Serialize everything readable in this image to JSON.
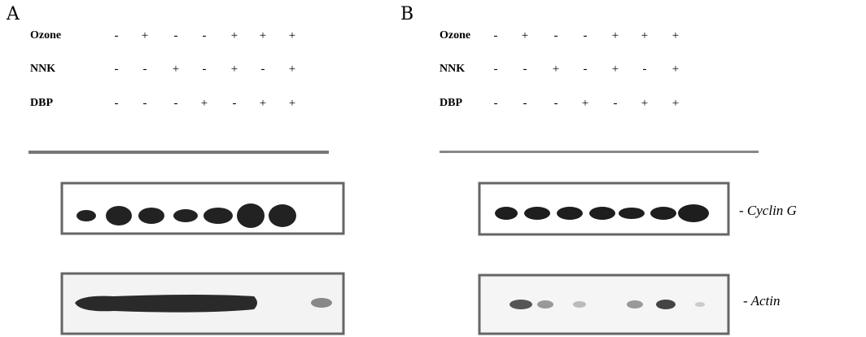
{
  "panels": [
    {
      "label": "A",
      "rows": [
        {
          "name": "Ozone",
          "marks": [
            "-",
            "+",
            "-",
            "-",
            "+",
            "+",
            "+"
          ]
        },
        {
          "name": "NNK",
          "marks": [
            "-",
            "-",
            "+",
            "-",
            "+",
            "-",
            "+"
          ]
        },
        {
          "name": "DBP",
          "marks": [
            "-",
            "-",
            "-",
            "+",
            "-",
            "+",
            "+"
          ]
        }
      ]
    },
    {
      "label": "B",
      "rows": [
        {
          "name": "Ozone",
          "marks": [
            "-",
            "+",
            "-",
            "-",
            "+",
            "+",
            "+"
          ]
        },
        {
          "name": "NNK",
          "marks": [
            "-",
            "-",
            "+",
            "-",
            "+",
            "-",
            "+"
          ]
        },
        {
          "name": "DBP",
          "marks": [
            "-",
            "-",
            "-",
            "+",
            "-",
            "+",
            "+"
          ]
        }
      ]
    }
  ],
  "blot_labels": [
    "- Cyclin G",
    "- Actin"
  ]
}
